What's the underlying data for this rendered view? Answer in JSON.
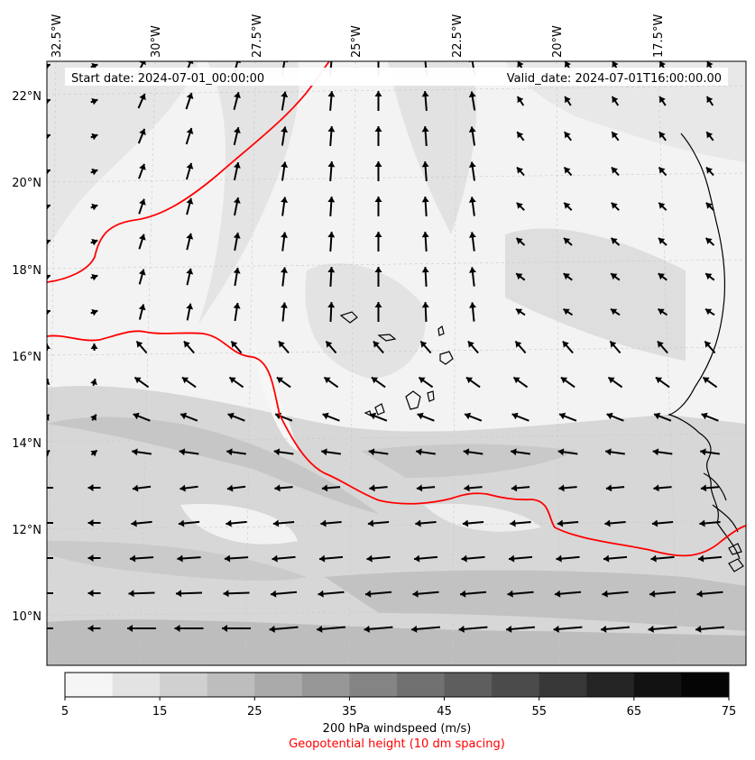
{
  "header": {
    "start_date": "Start date: 2024-07-01_00:00:00",
    "valid_date": "Valid_date: 2024-07-01T16:00:00.00"
  },
  "axes": {
    "lon_labels": [
      "32.5°W",
      "30°W",
      "27.5°W",
      "25°W",
      "22.5°W",
      "20°W",
      "17.5°W"
    ],
    "lat_labels": [
      "22°N",
      "20°N",
      "18°N",
      "16°N",
      "14°N",
      "12°N",
      "10°N"
    ]
  },
  "colorbar": {
    "ticks": [
      "5",
      "15",
      "25",
      "35",
      "45",
      "55",
      "65",
      "75"
    ],
    "colors": [
      "#f5f5f5",
      "#e3e3e3",
      "#d0d0d0",
      "#bdbdbd",
      "#aaaaaa",
      "#979797",
      "#848484",
      "#717171",
      "#5e5e5e",
      "#4b4b4b",
      "#383838",
      "#252525",
      "#121212",
      "#050505"
    ],
    "label": "200 hPa windspeed (m/s)",
    "contour_label": "Geopotential height (10 dm spacing)",
    "contour_color": "#ff0000"
  },
  "legend_icons": {
    "wind": "wind-arrow-icon",
    "coast": "coastline"
  }
}
